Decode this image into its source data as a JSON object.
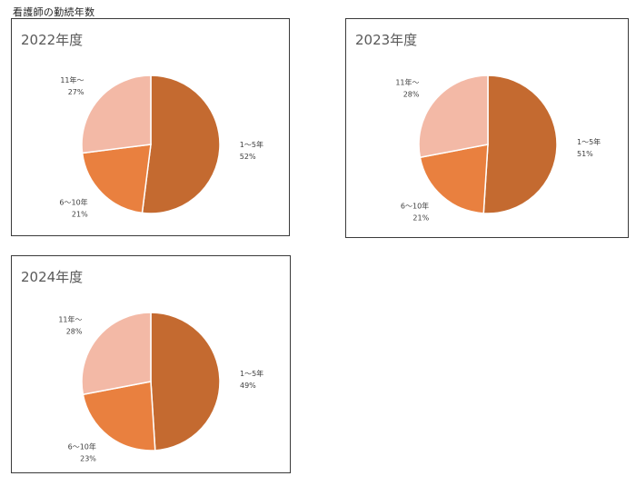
{
  "page": {
    "heading": "看護師の勤続年数"
  },
  "colors": {
    "slice_1_5": "#c46a30",
    "slice_6_10": "#e9803f",
    "slice_11": "#f3b9a6",
    "title": "#595959",
    "label": "#404040",
    "border": "#3a3a3a"
  },
  "chart_data": [
    {
      "type": "pie",
      "title": "2022年度",
      "slices": [
        {
          "label": "1～5年",
          "value": 52,
          "pct": "52%"
        },
        {
          "label": "6～10年",
          "value": 21,
          "pct": "21%"
        },
        {
          "label": "11年～",
          "value": 27,
          "pct": "27%"
        }
      ]
    },
    {
      "type": "pie",
      "title": "2023年度",
      "slices": [
        {
          "label": "1～5年",
          "value": 51,
          "pct": "51%"
        },
        {
          "label": "6～10年",
          "value": 21,
          "pct": "21%"
        },
        {
          "label": "11年～",
          "value": 28,
          "pct": "28%"
        }
      ]
    },
    {
      "type": "pie",
      "title": "2024年度",
      "slices": [
        {
          "label": "1～5年",
          "value": 49,
          "pct": "49%"
        },
        {
          "label": "6～10年",
          "value": 23,
          "pct": "23%"
        },
        {
          "label": "11年～",
          "value": 28,
          "pct": "28%"
        }
      ]
    }
  ]
}
